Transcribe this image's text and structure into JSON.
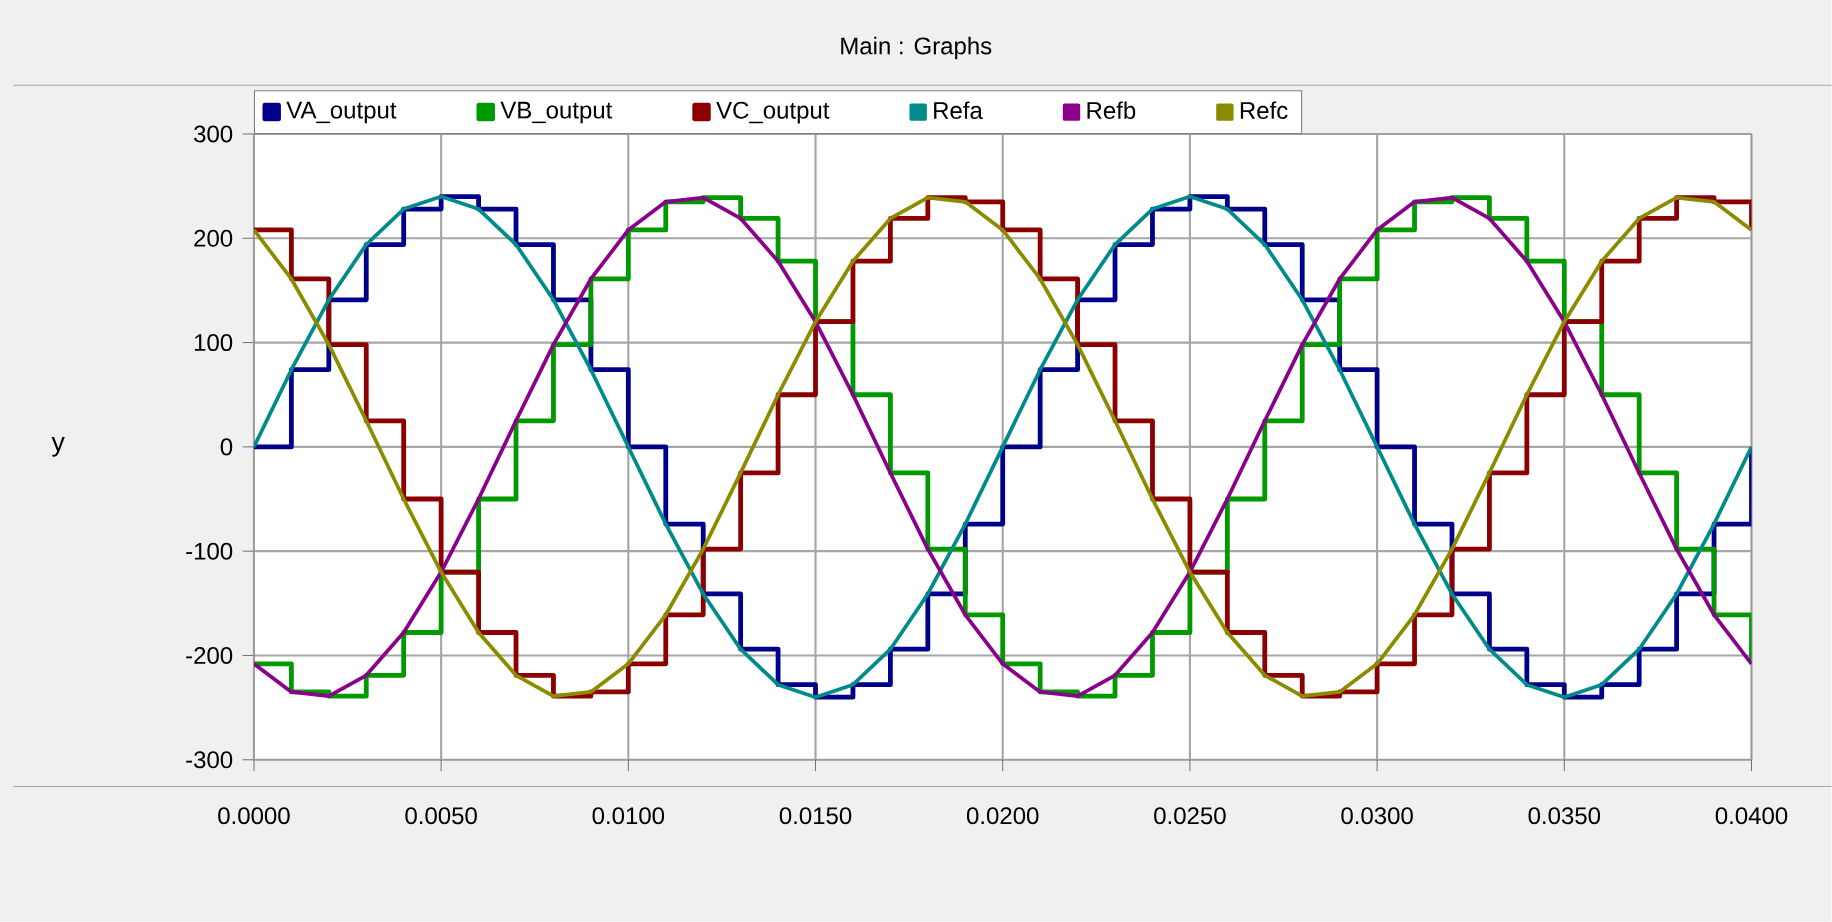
{
  "chart_data": {
    "type": "line",
    "title": "Main : Graphs",
    "ylabel": "y",
    "x": [
      0,
      0.001,
      0.002,
      0.003,
      0.004,
      0.005,
      0.006,
      0.007,
      0.008,
      0.009,
      0.01,
      0.011,
      0.012,
      0.013,
      0.014,
      0.015,
      0.016,
      0.017,
      0.018,
      0.019,
      0.02,
      0.021,
      0.022,
      0.023,
      0.024,
      0.025,
      0.026,
      0.027,
      0.028,
      0.029,
      0.03,
      0.031,
      0.032,
      0.033,
      0.034,
      0.035,
      0.036,
      0.037,
      0.038,
      0.039,
      0.04
    ],
    "series": [
      {
        "name": "VA_output",
        "type": "step",
        "color": "#00008b",
        "values": [
          0,
          74,
          141,
          194,
          228,
          240,
          228,
          194,
          141,
          74,
          0,
          -74,
          -141,
          -194,
          -228,
          -240,
          -228,
          -194,
          -141,
          -74,
          0,
          74,
          141,
          194,
          228,
          240,
          228,
          194,
          141,
          74,
          0,
          -74,
          -141,
          -194,
          -228,
          -240,
          -228,
          -194,
          -141,
          -74,
          0
        ]
      },
      {
        "name": "VB_output",
        "type": "step",
        "color": "#009900",
        "values": [
          -208,
          -235,
          -239,
          -219,
          -178,
          -120,
          -50,
          25,
          98,
          161,
          208,
          235,
          239,
          219,
          178,
          120,
          50,
          -25,
          -98,
          -161,
          -208,
          -235,
          -239,
          -219,
          -178,
          -120,
          -50,
          25,
          98,
          161,
          208,
          235,
          239,
          219,
          178,
          120,
          50,
          -25,
          -98,
          -161,
          -208
        ]
      },
      {
        "name": "VC_output",
        "type": "step",
        "color": "#8b0000",
        "values": [
          208,
          161,
          98,
          25,
          -50,
          -120,
          -178,
          -219,
          -239,
          -235,
          -208,
          -161,
          -98,
          -25,
          50,
          120,
          178,
          219,
          239,
          235,
          208,
          161,
          98,
          25,
          -50,
          -120,
          -178,
          -219,
          -239,
          -235,
          -208,
          -161,
          -98,
          -25,
          50,
          120,
          178,
          219,
          239,
          235,
          208
        ]
      },
      {
        "name": "Refa",
        "color": "#008b8b",
        "values": [
          0,
          74,
          141,
          194,
          228,
          240,
          228,
          194,
          141,
          74,
          0,
          -74,
          -141,
          -194,
          -228,
          -240,
          -228,
          -194,
          -141,
          -74,
          0,
          74,
          141,
          194,
          228,
          240,
          228,
          194,
          141,
          74,
          0,
          -74,
          -141,
          -194,
          -228,
          -240,
          -228,
          -194,
          -141,
          -74,
          0
        ]
      },
      {
        "name": "Refb",
        "color": "#8b008b",
        "values": [
          -208,
          -235,
          -239,
          -219,
          -178,
          -120,
          -50,
          25,
          98,
          161,
          208,
          235,
          239,
          219,
          178,
          120,
          50,
          -25,
          -98,
          -161,
          -208,
          -235,
          -239,
          -219,
          -178,
          -120,
          -50,
          25,
          98,
          161,
          208,
          235,
          239,
          219,
          178,
          120,
          50,
          -25,
          -98,
          -161,
          -208
        ]
      },
      {
        "name": "Refc",
        "color": "#8b8b00",
        "values": [
          208,
          161,
          98,
          25,
          -50,
          -120,
          -178,
          -219,
          -239,
          -235,
          -208,
          -161,
          -98,
          -25,
          50,
          120,
          178,
          219,
          239,
          235,
          208,
          161,
          98,
          25,
          -50,
          -120,
          -178,
          -219,
          -239,
          -235,
          -208,
          -161,
          -98,
          -25,
          50,
          120,
          178,
          219,
          239,
          235,
          208
        ]
      }
    ],
    "xlim": [
      0,
      0.04
    ],
    "xticks": [
      {
        "value": 0,
        "label": "0.0000"
      },
      {
        "value": 0.005,
        "label": "0.0050"
      },
      {
        "value": 0.01,
        "label": "0.0100"
      },
      {
        "value": 0.015,
        "label": "0.0150"
      },
      {
        "value": 0.02,
        "label": "0.0200"
      },
      {
        "value": 0.025,
        "label": "0.0250"
      },
      {
        "value": 0.03,
        "label": "0.0300"
      },
      {
        "value": 0.035,
        "label": "0.0350"
      },
      {
        "value": 0.04,
        "label": "0.0400"
      }
    ],
    "ylim": [
      -300,
      300
    ],
    "yticks": [
      -300,
      -200,
      -100,
      0,
      100,
      200,
      300
    ],
    "grid": true,
    "legend": "top",
    "marker": "none",
    "line_style": "solid"
  }
}
